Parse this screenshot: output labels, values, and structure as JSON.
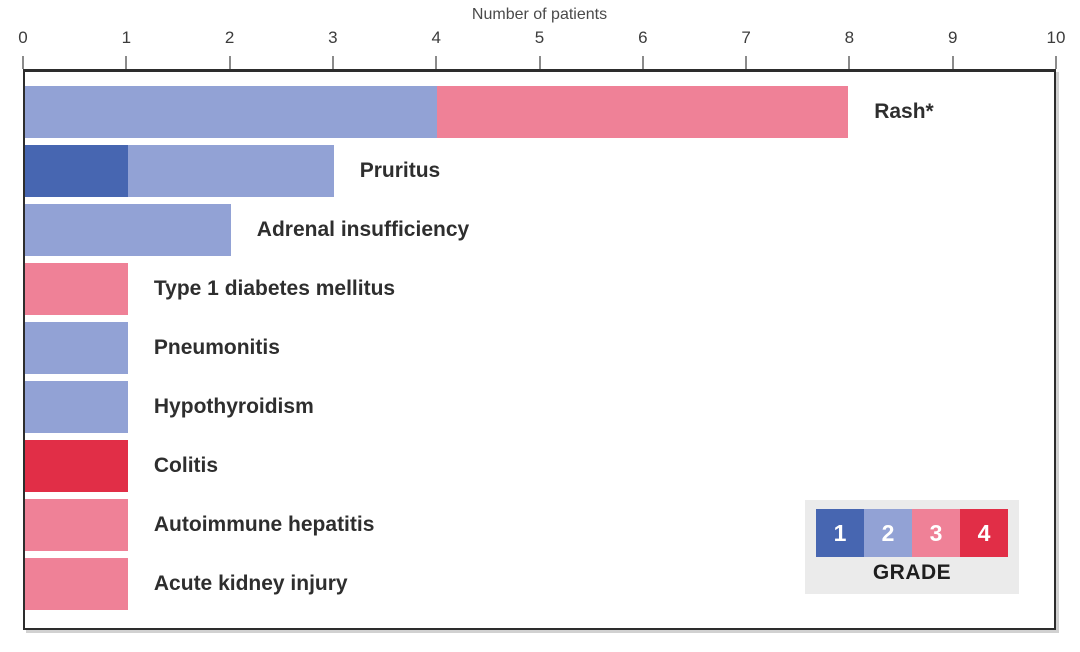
{
  "chart_data": {
    "type": "bar",
    "variant": "horizontal-stacked",
    "xlabel": "Number of patients",
    "x_axis": {
      "min": 0,
      "max": 10,
      "ticks": [
        0,
        1,
        2,
        3,
        4,
        5,
        6,
        7,
        8,
        9,
        10
      ]
    },
    "categories": [
      "Rash*",
      "Pruritus",
      "Adrenal insufficiency",
      "Type 1 diabetes mellitus",
      "Pneumonitis",
      "Hypothyroidism",
      "Colitis",
      "Autoimmune hepatitis",
      "Acute kidney injury"
    ],
    "series": [
      {
        "name": "Grade 1",
        "grade": "1",
        "color": "#4766b1",
        "values": [
          0,
          1,
          0,
          0,
          0,
          0,
          0,
          0,
          0
        ]
      },
      {
        "name": "Grade 2",
        "grade": "2",
        "color": "#92a2d5",
        "values": [
          4,
          2,
          2,
          0,
          1,
          1,
          0,
          0,
          0
        ]
      },
      {
        "name": "Grade 3",
        "grade": "3",
        "color": "#ef8197",
        "values": [
          4,
          0,
          0,
          1,
          0,
          0,
          0,
          1,
          1
        ]
      },
      {
        "name": "Grade 4",
        "grade": "4",
        "color": "#e12e47",
        "values": [
          0,
          0,
          0,
          0,
          0,
          0,
          1,
          0,
          0
        ]
      }
    ],
    "totals": [
      8,
      3,
      2,
      1,
      1,
      1,
      1,
      1,
      1
    ],
    "legend": {
      "title": "GRADE",
      "entries": [
        "1",
        "2",
        "3",
        "4"
      ],
      "position": "bottom-right",
      "background": "#ebebeb"
    },
    "grid": false,
    "axis_color": "#2d2d2d"
  }
}
